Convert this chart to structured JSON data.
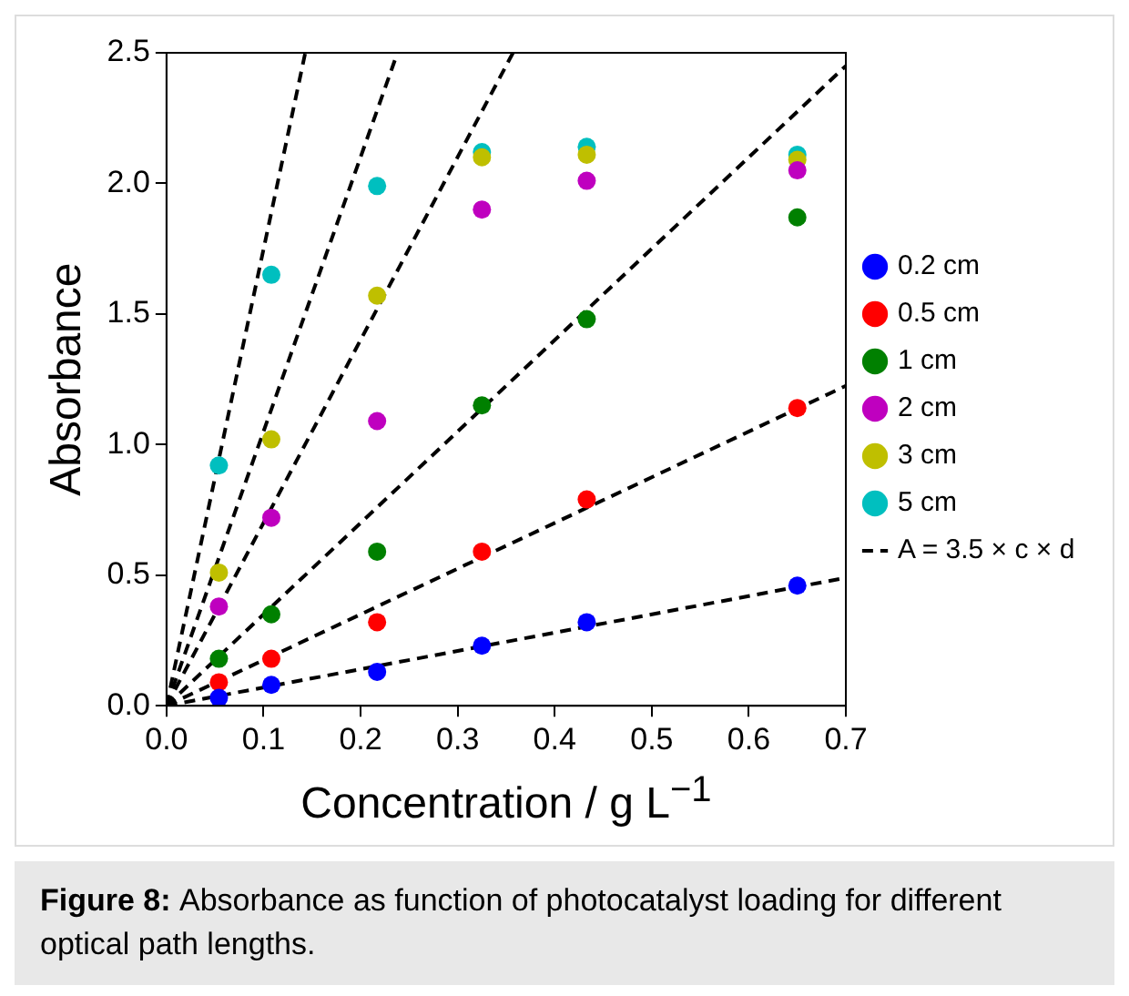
{
  "chart_data": {
    "type": "scatter",
    "xlabel": "Concentration / g L$^{−1}$",
    "ylabel": "Absorbance",
    "x": [
      0.054,
      0.108,
      0.217,
      0.325,
      0.433,
      0.65
    ],
    "xlim": [
      0,
      0.7
    ],
    "xticks": [
      {
        "value": 0,
        "label": "0.0"
      },
      0.1,
      0.2,
      0.3,
      0.4,
      0.5,
      0.6,
      0.7
    ],
    "ylim": [
      0,
      2.5
    ],
    "yticks": [
      {
        "value": 0,
        "label": "0.0"
      },
      0.5,
      {
        "value": 1,
        "label": "1.0"
      },
      1.5,
      {
        "value": 2,
        "label": "2.0"
      },
      2.5
    ],
    "grid": false,
    "legend": "right",
    "marker": "circle",
    "series": [
      {
        "name": "0.2 cm",
        "color": "#0000ff",
        "values": [
          0.03,
          0.08,
          0.13,
          0.23,
          0.32,
          0.46
        ]
      },
      {
        "name": "0.5 cm",
        "color": "#ff0000",
        "values": [
          0.09,
          0.18,
          0.32,
          0.59,
          0.79,
          1.14
        ]
      },
      {
        "name": "1 cm",
        "color": "#008000",
        "values": [
          0.18,
          0.35,
          0.59,
          1.15,
          1.48,
          1.87
        ]
      },
      {
        "name": "2 cm",
        "color": "#bf00bf",
        "values": [
          0.38,
          0.72,
          1.09,
          1.9,
          2.01,
          2.05
        ]
      },
      {
        "name": "3 cm",
        "color": "#bfbf00",
        "values": [
          0.51,
          1.02,
          1.57,
          2.1,
          2.11,
          2.09
        ]
      },
      {
        "name": "5 cm",
        "color": "#00bfbf",
        "values": [
          0.92,
          1.65,
          1.99,
          2.12,
          2.14,
          2.11
        ]
      },
      {
        "name": "A = 3.5 × c × d",
        "type": "line",
        "line_style": "dashed",
        "marker": "none",
        "color": "#000000",
        "x": [
          0,
          0.7
        ],
        "values": [
          0,
          0.49
        ]
      },
      {
        "type": "line",
        "line_style": "dashed",
        "marker": "none",
        "color": "#000000",
        "x": [
          0,
          0.7
        ],
        "values": [
          0,
          1.225
        ]
      },
      {
        "type": "line",
        "line_style": "dashed",
        "marker": "none",
        "color": "#000000",
        "x": [
          0,
          0.7
        ],
        "values": [
          0,
          2.45
        ]
      },
      {
        "type": "line",
        "line_style": "dashed",
        "marker": "none",
        "color": "#000000",
        "x": [
          0,
          0.357
        ],
        "values": [
          0,
          2.5
        ]
      },
      {
        "type": "line",
        "line_style": "dashed",
        "marker": "none",
        "color": "#000000",
        "x": [
          0,
          0.238
        ],
        "values": [
          0,
          2.5
        ]
      },
      {
        "type": "line",
        "line_style": "dashed",
        "marker": "none",
        "color": "#000000",
        "x": [
          0,
          0.143
        ],
        "values": [
          0,
          2.5
        ]
      }
    ],
    "annotations": [
      "Figure 8:",
      "Absorbance as function of photocatalyst loading for different optical path lengths."
    ]
  }
}
